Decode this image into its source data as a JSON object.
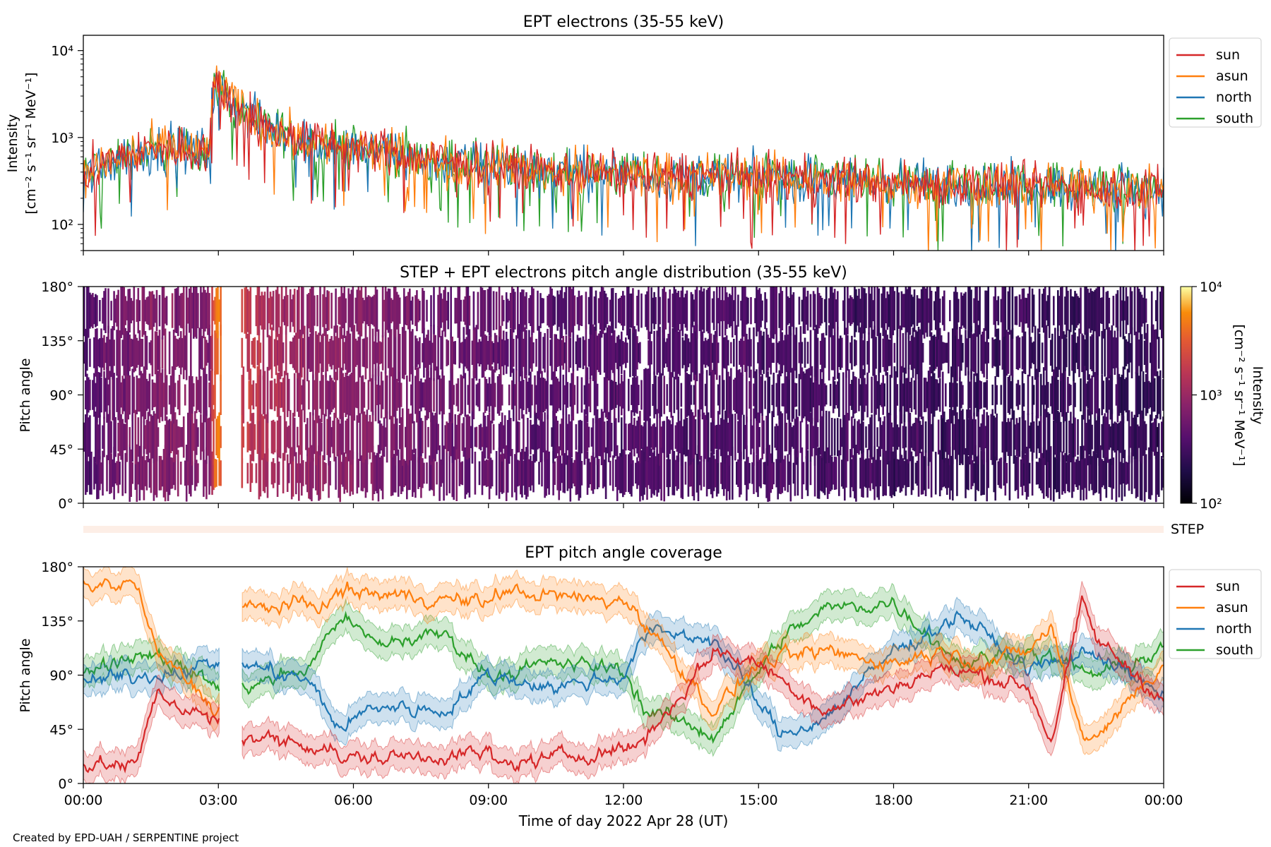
{
  "figure": {
    "credit": "Created by EPD-UAH / SERPENTINE project",
    "xlabel": "Time of day 2022 Apr 28 (UT)",
    "xticks": [
      "00:00",
      "03:00",
      "06:00",
      "09:00",
      "12:00",
      "15:00",
      "18:00",
      "21:00",
      "00:00"
    ]
  },
  "chart_data": [
    {
      "type": "line",
      "title": "EPT electrons (35-55 keV)",
      "ylabel": "Intensity",
      "yunit": "[cm⁻² s⁻¹ sr⁻¹ MeV⁻¹]",
      "yscale": "log",
      "ylim": [
        50,
        15000
      ],
      "yticks": [
        "10²",
        "10³",
        "10⁴"
      ],
      "yticks_values": [
        100,
        1000,
        10000
      ],
      "xlim_hours": [
        0,
        24
      ],
      "legend_position": "outside-right",
      "series": [
        {
          "name": "sun",
          "color": "#d62728"
        },
        {
          "name": "asun",
          "color": "#ff7f0e"
        },
        {
          "name": "north",
          "color": "#1f77b4"
        },
        {
          "name": "south",
          "color": "#2ca02c"
        }
      ],
      "envelope_hours": [
        0,
        1,
        2,
        2.8,
        2.95,
        3.3,
        4,
        5,
        6,
        8,
        10,
        12,
        15,
        18,
        21,
        24
      ],
      "envelope_values": [
        350,
        650,
        750,
        700,
        4500,
        2400,
        1300,
        900,
        750,
        520,
        430,
        380,
        350,
        300,
        280,
        260
      ]
    },
    {
      "type": "heatmap",
      "title": "STEP + EPT electrons pitch angle distribution (35-55 keV)",
      "ylabel": "Pitch angle",
      "ylim": [
        0,
        180
      ],
      "yticks": [
        "0°",
        "45°",
        "90°",
        "135°",
        "180°"
      ],
      "colorbar": {
        "label": "Intensity",
        "unit": "[cm⁻² s⁻¹ sr⁻¹ MeV⁻¹]",
        "scale": "log",
        "range": [
          100,
          10000
        ],
        "ticks": [
          "10²",
          "10³",
          "10⁴"
        ],
        "colormap": "inferno"
      }
    },
    {
      "type": "heatmap",
      "label": "STEP",
      "note": "empty strip"
    },
    {
      "type": "line",
      "title": "EPT pitch angle coverage",
      "ylabel": "Pitch angle",
      "ylim": [
        0,
        180
      ],
      "yticks": [
        "0°",
        "45°",
        "90°",
        "135°",
        "180°"
      ],
      "legend_position": "outside-right",
      "series": [
        {
          "name": "sun",
          "color": "#d62728",
          "hours": [
            0,
            1.2,
            1.6,
            3.5,
            5.5,
            5.7,
            9,
            9.2,
            12.2,
            12.5,
            13,
            14,
            15,
            16.5,
            18,
            19,
            20,
            21,
            21.5,
            22.2,
            22.5,
            24
          ],
          "values": [
            15,
            15,
            75,
            40,
            30,
            20,
            25,
            15,
            30,
            40,
            60,
            110,
            100,
            60,
            80,
            95,
            90,
            80,
            35,
            150,
            120,
            70
          ]
        },
        {
          "name": "asun",
          "color": "#ff7f0e",
          "hours": [
            0,
            1.2,
            1.6,
            3,
            3.5,
            5.5,
            5.7,
            9,
            9.2,
            12.2,
            12.5,
            13,
            14,
            15,
            16.5,
            18,
            19,
            20,
            21,
            21.5,
            22.2,
            22.5,
            24
          ],
          "values": [
            165,
            165,
            110,
            60,
            145,
            150,
            160,
            150,
            160,
            150,
            130,
            110,
            60,
            100,
            110,
            100,
            110,
            100,
            110,
            130,
            40,
            40,
            100
          ]
        },
        {
          "name": "north",
          "color": "#1f77b4",
          "hours": [
            0,
            1.5,
            3,
            3.5,
            5,
            5.7,
            6.5,
            8,
            9,
            10.5,
            12,
            12.5,
            13,
            14,
            15.5,
            16.5,
            18,
            19.5,
            21,
            22.5,
            24
          ],
          "values": [
            85,
            90,
            100,
            100,
            85,
            45,
            65,
            60,
            90,
            80,
            90,
            125,
            125,
            120,
            40,
            55,
            110,
            140,
            95,
            110,
            70
          ]
        },
        {
          "name": "south",
          "color": "#2ca02c",
          "hours": [
            0,
            1.5,
            3,
            3.5,
            5,
            5.7,
            6.5,
            8,
            9,
            10.5,
            12,
            12.5,
            13,
            14,
            15.5,
            16.5,
            18,
            19.5,
            21,
            22.5,
            24
          ],
          "values": [
            95,
            110,
            80,
            80,
            95,
            140,
            115,
            125,
            90,
            100,
            95,
            60,
            55,
            40,
            120,
            145,
            150,
            100,
            110,
            90,
            110
          ]
        }
      ]
    }
  ]
}
